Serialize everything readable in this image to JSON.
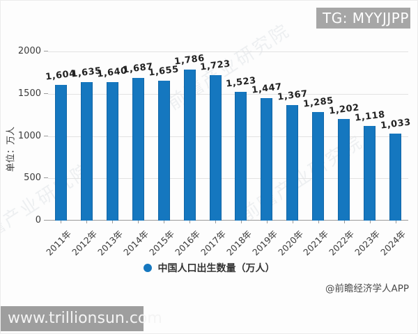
{
  "overlays": {
    "tg_badge": "TG: MYYJJPP",
    "site_url": "www.trillionsun.com"
  },
  "chart_data": {
    "type": "bar",
    "title": "",
    "ylabel": "单位：万人",
    "xlabel": "",
    "categories": [
      "2011年",
      "2012年",
      "2013年",
      "2014年",
      "2015年",
      "2016年",
      "2017年",
      "2018年",
      "2019年",
      "2020年",
      "2021年",
      "2022年",
      "2023年",
      "2024年"
    ],
    "values": [
      1604,
      1635,
      1640,
      1687,
      1655,
      1786,
      1723,
      1523,
      1447,
      1367,
      1285,
      1202,
      1118,
      1033
    ],
    "value_labels": [
      "1,604",
      "1,635",
      "1,640",
      "1,687",
      "1,655",
      "1,786",
      "1,723",
      "1,523",
      "1,447",
      "1,367",
      "1,285",
      "1,202",
      "1,118",
      "1,033"
    ],
    "ylim": [
      0,
      2000
    ],
    "yticks": [
      0,
      500,
      1000,
      1500,
      2000
    ],
    "grid": true,
    "legend": "中国人口出生数量（万人）",
    "legend_position": "bottom",
    "bar_color": "#1577bf",
    "source_credit": "@前瞻经济学人APP",
    "watermark": "前瞻产业研究院"
  }
}
